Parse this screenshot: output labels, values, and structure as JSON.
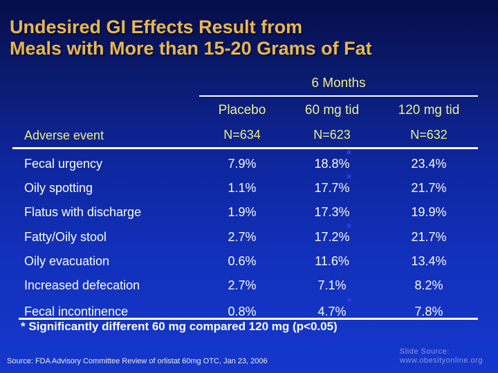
{
  "slide": {
    "title_line1": "Undesired GI Effects Result from",
    "title_line2": "Meals with More than 15-20 Grams of Fat",
    "table": {
      "group_header": "6 Months",
      "columns": [
        "Placebo",
        "60 mg tid",
        "120 mg tid"
      ],
      "row_header": "Adverse event",
      "n_values": [
        "N=634",
        "N=623",
        "N=632"
      ],
      "significance_marker": "*",
      "rows": [
        {
          "label": "Fecal urgency",
          "values": [
            "7.9%",
            "18.8%",
            "23.4%"
          ],
          "significant": true
        },
        {
          "label": "Oily spotting",
          "values": [
            "1.1%",
            "17.7%",
            "21.7%"
          ],
          "significant": true
        },
        {
          "label": "Flatus with discharge",
          "values": [
            "1.9%",
            "17.3%",
            "19.9%"
          ],
          "significant": false
        },
        {
          "label": "Fatty/Oily stool",
          "values": [
            "2.7%",
            "17.2%",
            "21.7%"
          ],
          "significant": true
        },
        {
          "label": "Oily evacuation",
          "values": [
            "0.6%",
            "11.6%",
            "13.4%"
          ],
          "significant": false
        },
        {
          "label": "Increased defecation",
          "values": [
            "2.7%",
            "7.1%",
            "8.2%"
          ],
          "significant": false
        },
        {
          "label": "Fecal incontinence",
          "values": [
            "0.8%",
            "4.7%",
            "7.8%"
          ],
          "significant": true
        }
      ]
    },
    "footnote": "* Significantly different 60 mg compared 120 mg (p<0.05)",
    "source": "Source: FDA Advisory Committee Review of orlistat 60mg OTC, Jan 23, 2006",
    "slide_source_label": "Slide Source:",
    "slide_source_url": "www.obesityonline.org",
    "colors": {
      "background_top": "#060d48",
      "background_bottom": "#1537cc",
      "title_gold": "#e9b74c",
      "header_yellow": "#edee86",
      "body_white": "#fcfcef",
      "rule_white": "#fffff2",
      "asterisk_blue": "#2e3ff2",
      "source_text": "#efedd2",
      "slide_source_text": "#8c98db"
    }
  }
}
